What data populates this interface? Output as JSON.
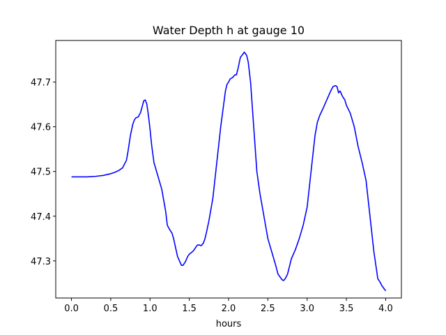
{
  "chart_data": {
    "type": "line",
    "title": "Water Depth h at gauge 10",
    "xlabel": "hours",
    "ylabel": "",
    "xlim": [
      -0.2,
      4.2
    ],
    "ylim": [
      47.217,
      47.793
    ],
    "xticks": [
      0.0,
      0.5,
      1.0,
      1.5,
      2.0,
      2.5,
      3.0,
      3.5,
      4.0
    ],
    "xtick_labels": [
      "0.0",
      "0.5",
      "1.0",
      "1.5",
      "2.0",
      "2.5",
      "3.0",
      "3.5",
      "4.0"
    ],
    "yticks": [
      47.3,
      47.4,
      47.5,
      47.6,
      47.7
    ],
    "ytick_labels": [
      "47.3",
      "47.4",
      "47.5",
      "47.6",
      "47.7"
    ],
    "grid": false,
    "series": [
      {
        "color": "#0000ff",
        "x": [
          0.0,
          0.1,
          0.2,
          0.3,
          0.35,
          0.4,
          0.45,
          0.5,
          0.55,
          0.6,
          0.65,
          0.7,
          0.72,
          0.75,
          0.78,
          0.8,
          0.82,
          0.85,
          0.88,
          0.9,
          0.92,
          0.94,
          0.96,
          0.98,
          1.0,
          1.02,
          1.05,
          1.1,
          1.15,
          1.18,
          1.2,
          1.22,
          1.25,
          1.28,
          1.3,
          1.35,
          1.4,
          1.42,
          1.45,
          1.48,
          1.5,
          1.55,
          1.6,
          1.62,
          1.65,
          1.68,
          1.7,
          1.72,
          1.75,
          1.8,
          1.85,
          1.9,
          1.93,
          1.96,
          1.98,
          2.0,
          2.02,
          2.05,
          2.08,
          2.1,
          2.12,
          2.15,
          2.18,
          2.2,
          2.23,
          2.25,
          2.28,
          2.32,
          2.36,
          2.4,
          2.45,
          2.5,
          2.55,
          2.6,
          2.63,
          2.66,
          2.68,
          2.7,
          2.72,
          2.75,
          2.8,
          2.85,
          2.9,
          2.95,
          3.0,
          3.05,
          3.1,
          3.13,
          3.16,
          3.2,
          3.25,
          3.3,
          3.33,
          3.36,
          3.38,
          3.4,
          3.42,
          3.45,
          3.48,
          3.5,
          3.55,
          3.6,
          3.65,
          3.7,
          3.75,
          3.8,
          3.85,
          3.9,
          3.93,
          3.95,
          3.97,
          4.0
        ],
        "y": [
          47.488,
          47.488,
          47.488,
          47.489,
          47.49,
          47.491,
          47.493,
          47.495,
          47.498,
          47.502,
          47.508,
          47.525,
          47.545,
          47.58,
          47.605,
          47.615,
          47.62,
          47.622,
          47.632,
          47.645,
          47.658,
          47.66,
          47.65,
          47.625,
          47.595,
          47.56,
          47.52,
          47.49,
          47.46,
          47.43,
          47.41,
          47.38,
          47.37,
          47.362,
          47.35,
          47.31,
          47.29,
          47.29,
          47.298,
          47.31,
          47.315,
          47.322,
          47.335,
          47.336,
          47.334,
          47.34,
          47.35,
          47.365,
          47.39,
          47.44,
          47.52,
          47.6,
          47.64,
          47.68,
          47.695,
          47.7,
          47.707,
          47.71,
          47.716,
          47.716,
          47.73,
          47.755,
          47.762,
          47.767,
          47.76,
          47.745,
          47.7,
          47.6,
          47.5,
          47.45,
          47.4,
          47.35,
          47.32,
          47.29,
          47.27,
          47.263,
          47.258,
          47.256,
          47.26,
          47.27,
          47.305,
          47.325,
          47.35,
          47.38,
          47.42,
          47.5,
          47.58,
          47.61,
          47.625,
          47.64,
          47.66,
          47.68,
          47.69,
          47.692,
          47.69,
          47.676,
          47.68,
          47.668,
          47.66,
          47.648,
          47.63,
          47.6,
          47.555,
          47.52,
          47.48,
          47.4,
          47.32,
          47.26,
          47.252,
          47.245,
          47.24,
          47.233
        ]
      }
    ]
  }
}
